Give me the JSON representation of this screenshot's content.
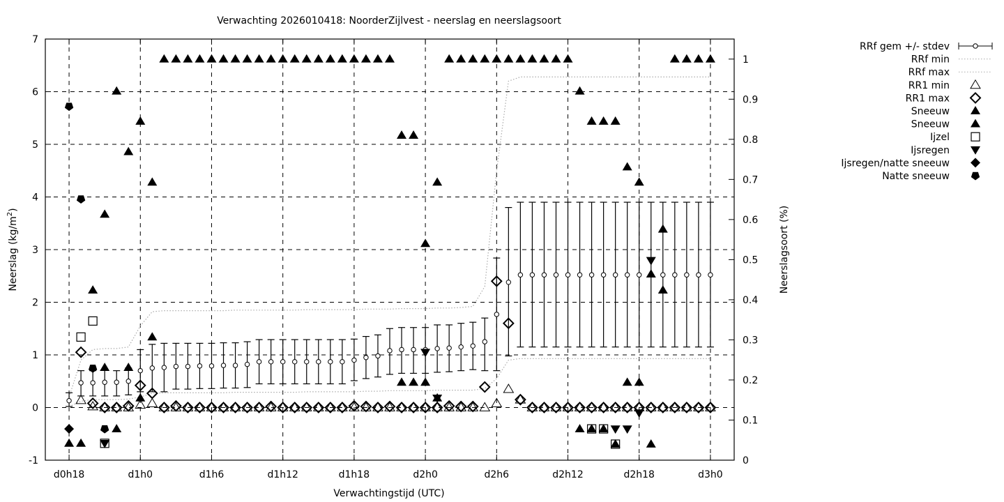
{
  "chart_data": {
    "type": "scatter",
    "title": "Verwachting 2026010418: NoorderZijlvest - neerslag en neerslagsoort",
    "xlabel": "Verwachtingstijd (UTC)",
    "ylabel": "Neerslag (kg/m²)",
    "ylabel_base": "Neerslag (kg/m",
    "ylabel_sup": "2",
    "ylabel_end": ")",
    "y2label": "Neerslagsoort (%)",
    "xlim": [
      "d0h16",
      "d3h2"
    ],
    "ylim": [
      -1,
      7
    ],
    "y2lim": [
      0,
      1.05
    ],
    "grid": true,
    "legend_placement": "outside-right",
    "xticks": [
      "d0h18",
      "d1h0",
      "d1h6",
      "d1h12",
      "d1h18",
      "d2h0",
      "d2h6",
      "d2h12",
      "d2h18",
      "d3h0"
    ],
    "yticks": [
      "-1",
      "0",
      "1",
      "2",
      "3",
      "4",
      "5",
      "6",
      "7"
    ],
    "y2ticks": [
      "0",
      "0.1",
      "0.2",
      "0.3",
      "0.4",
      "0.5",
      "0.6",
      "0.7",
      "0.8",
      "0.9",
      "1"
    ],
    "x": [
      "d0h18",
      "d0h19",
      "d0h20",
      "d0h21",
      "d0h22",
      "d0h23",
      "d1h0",
      "d1h1",
      "d1h2",
      "d1h3",
      "d1h4",
      "d1h5",
      "d1h6",
      "d1h7",
      "d1h8",
      "d1h9",
      "d1h10",
      "d1h11",
      "d1h12",
      "d1h13",
      "d1h14",
      "d1h15",
      "d1h16",
      "d1h17",
      "d1h18",
      "d1h19",
      "d1h20",
      "d1h21",
      "d1h22",
      "d1h23",
      "d2h0",
      "d2h1",
      "d2h2",
      "d2h3",
      "d2h4",
      "d2h5",
      "d2h6",
      "d2h7",
      "d2h8",
      "d2h9",
      "d2h10",
      "d2h11",
      "d2h12",
      "d2h13",
      "d2h14",
      "d2h15",
      "d2h16",
      "d2h17",
      "d2h18",
      "d2h19",
      "d2h20",
      "d2h21",
      "d2h22",
      "d2h23",
      "d3h0"
    ],
    "rrf_mean": [
      0.13,
      0.47,
      0.47,
      0.48,
      0.48,
      0.5,
      0.7,
      0.75,
      0.76,
      0.78,
      0.78,
      0.79,
      0.79,
      0.8,
      0.8,
      0.82,
      0.87,
      0.87,
      0.87,
      0.87,
      0.87,
      0.87,
      0.87,
      0.87,
      0.9,
      0.95,
      0.98,
      1.08,
      1.1,
      1.1,
      1.1,
      1.12,
      1.13,
      1.15,
      1.17,
      1.25,
      1.77,
      2.38,
      2.52,
      2.52,
      2.52,
      2.52,
      2.52,
      2.52,
      2.52,
      2.52,
      2.52,
      2.52,
      2.52,
      2.52,
      2.52,
      2.52,
      2.52,
      2.52,
      2.52
    ],
    "rrf_low": [
      0.02,
      0.22,
      0.22,
      0.22,
      0.22,
      0.24,
      0.3,
      0.3,
      0.3,
      0.35,
      0.35,
      0.36,
      0.36,
      0.37,
      0.37,
      0.38,
      0.45,
      0.45,
      0.45,
      0.45,
      0.45,
      0.45,
      0.45,
      0.45,
      0.51,
      0.55,
      0.58,
      0.63,
      0.65,
      0.65,
      0.65,
      0.67,
      0.68,
      0.7,
      0.72,
      0.7,
      0.7,
      0.98,
      1.15,
      1.15,
      1.15,
      1.15,
      1.15,
      1.15,
      1.15,
      1.15,
      1.15,
      1.15,
      1.15,
      1.15,
      1.15,
      1.15,
      1.15,
      1.15,
      1.15
    ],
    "rrf_high": [
      0.28,
      0.7,
      0.7,
      0.72,
      0.7,
      0.75,
      1.1,
      1.2,
      1.22,
      1.22,
      1.22,
      1.22,
      1.22,
      1.23,
      1.23,
      1.25,
      1.29,
      1.29,
      1.29,
      1.29,
      1.29,
      1.29,
      1.29,
      1.29,
      1.3,
      1.35,
      1.38,
      1.5,
      1.52,
      1.52,
      1.52,
      1.57,
      1.57,
      1.6,
      1.62,
      1.7,
      2.84,
      3.8,
      3.9,
      3.9,
      3.9,
      3.9,
      3.9,
      3.9,
      3.9,
      3.9,
      3.9,
      3.9,
      3.9,
      3.9,
      3.9,
      3.9,
      3.9,
      3.9,
      3.9
    ],
    "rrf_min": [
      0.02,
      0.12,
      0.15,
      0.15,
      0.15,
      0.16,
      0.2,
      0.27,
      0.28,
      0.28,
      0.28,
      0.28,
      0.28,
      0.28,
      0.29,
      0.29,
      0.29,
      0.29,
      0.29,
      0.29,
      0.3,
      0.3,
      0.3,
      0.3,
      0.3,
      0.31,
      0.31,
      0.32,
      0.32,
      0.32,
      0.32,
      0.33,
      0.33,
      0.33,
      0.33,
      0.36,
      0.55,
      0.9,
      0.93,
      0.93,
      0.93,
      0.93,
      0.93,
      0.93,
      0.93,
      0.93,
      0.93,
      0.93,
      0.93,
      0.93,
      0.93,
      0.93,
      0.93,
      0.93,
      0.93
    ],
    "rrf_max": [
      0.2,
      0.9,
      1.1,
      1.12,
      1.12,
      1.15,
      1.55,
      1.82,
      1.84,
      1.84,
      1.84,
      1.84,
      1.84,
      1.84,
      1.85,
      1.85,
      1.85,
      1.85,
      1.85,
      1.85,
      1.86,
      1.86,
      1.86,
      1.86,
      1.86,
      1.87,
      1.87,
      1.87,
      1.88,
      1.88,
      1.88,
      1.89,
      1.89,
      1.9,
      1.92,
      2.3,
      4.5,
      6.2,
      6.28,
      6.28,
      6.28,
      6.28,
      6.28,
      6.28,
      6.28,
      6.28,
      6.28,
      6.28,
      6.28,
      6.28,
      6.28,
      6.28,
      6.28,
      6.28,
      6.28
    ],
    "rr1_min": [
      null,
      0.14,
      0.02,
      0,
      0,
      0,
      0.05,
      0.08,
      0,
      0,
      0,
      0,
      0,
      0,
      0,
      0,
      0,
      0,
      0,
      0,
      0,
      0,
      0,
      0,
      0,
      0,
      0,
      0,
      0,
      0,
      0,
      0,
      0,
      0,
      0,
      0,
      0.08,
      0.35,
      0.15,
      0,
      0,
      0,
      0,
      0,
      0,
      0,
      0,
      0,
      0,
      0,
      0,
      0,
      0,
      0,
      0
    ],
    "rr1_max": [
      null,
      1.05,
      0.08,
      0,
      0,
      0.03,
      0.42,
      0.27,
      0,
      0.03,
      0,
      0,
      0,
      0,
      0,
      0,
      0,
      0.02,
      0,
      0,
      0,
      0,
      0,
      0,
      0.03,
      0.02,
      0,
      0.02,
      0,
      0,
      0,
      0,
      0.03,
      0.02,
      0.02,
      0.39,
      2.4,
      1.6,
      0.15,
      0,
      0,
      0,
      0,
      0,
      0,
      0,
      0,
      0,
      0,
      0,
      0,
      0,
      0,
      0,
      0
    ],
    "types": [
      {
        "name": "Sneeuw",
        "marker": "triangle-filled",
        "points": [
          [
            "d1h2",
            1
          ],
          [
            "d1h3",
            1
          ],
          [
            "d1h4",
            1
          ],
          [
            "d1h5",
            1
          ],
          [
            "d1h6",
            1
          ],
          [
            "d1h7",
            1
          ],
          [
            "d1h8",
            1
          ],
          [
            "d1h9",
            1
          ],
          [
            "d1h10",
            1
          ],
          [
            "d1h11",
            1
          ],
          [
            "d1h12",
            1
          ],
          [
            "d1h13",
            1
          ],
          [
            "d1h14",
            1
          ],
          [
            "d1h15",
            1
          ],
          [
            "d1h16",
            1
          ],
          [
            "d1h17",
            1
          ],
          [
            "d1h18",
            1
          ],
          [
            "d1h19",
            1
          ],
          [
            "d1h20",
            1
          ],
          [
            "d1h21",
            1
          ],
          [
            "d2h2",
            1
          ],
          [
            "d2h3",
            1
          ],
          [
            "d2h4",
            1
          ],
          [
            "d2h5",
            1
          ],
          [
            "d2h6",
            1
          ],
          [
            "d2h7",
            1
          ],
          [
            "d2h8",
            1
          ],
          [
            "d2h9",
            1
          ],
          [
            "d2h10",
            1
          ],
          [
            "d2h11",
            1
          ],
          [
            "d2h12",
            1
          ],
          [
            "d2h21",
            1
          ],
          [
            "d2h22",
            1
          ],
          [
            "d2h23",
            1
          ],
          [
            "d3h0",
            1
          ]
        ]
      },
      {
        "name": "Sneeuw",
        "marker": "triangle-filled",
        "points": [
          [
            "d0h18",
            0.042
          ],
          [
            "d0h19",
            0.042
          ],
          [
            "d0h20",
            0.424
          ],
          [
            "d0h21",
            0.613
          ],
          [
            "d0h21",
            0.231
          ],
          [
            "d0h22",
            0.92
          ],
          [
            "d0h22",
            0.078
          ],
          [
            "d0h23",
            0.769
          ],
          [
            "d0h23",
            0.231
          ],
          [
            "d1h0",
            0.845
          ],
          [
            "d1h0",
            0.155
          ],
          [
            "d1h1",
            0.693
          ],
          [
            "d1h1",
            0.307
          ],
          [
            "d1h22",
            0.81
          ],
          [
            "d1h23",
            0.81
          ],
          [
            "d1h22",
            0.194
          ],
          [
            "d1h23",
            0.194
          ],
          [
            "d2h0",
            0.194
          ],
          [
            "d2h0",
            0.54
          ],
          [
            "d2h1",
            0.693
          ],
          [
            "d2h1",
            0.155
          ],
          [
            "d2h13",
            0.92
          ],
          [
            "d2h14",
            0.845
          ],
          [
            "d2h15",
            0.845
          ],
          [
            "d2h16",
            0.845
          ],
          [
            "d2h17",
            0.731
          ],
          [
            "d2h18",
            0.693
          ],
          [
            "d2h17",
            0.194
          ],
          [
            "d2h18",
            0.194
          ],
          [
            "d2h19",
            0.464
          ],
          [
            "d2h20",
            0.576
          ],
          [
            "d2h20",
            0.424
          ],
          [
            "d2h13",
            0.078
          ],
          [
            "d2h14",
            0.078
          ],
          [
            "d2h15",
            0.078
          ],
          [
            "d2h16",
            0.04
          ],
          [
            "d2h19",
            0.04
          ]
        ]
      },
      {
        "name": "Ijzel",
        "marker": "square-open",
        "points": [
          [
            "d0h19",
            0.307
          ],
          [
            "d0h20",
            0.347
          ],
          [
            "d0h21",
            0.042
          ],
          [
            "d2h14",
            0.078
          ],
          [
            "d2h15",
            0.078
          ],
          [
            "d2h16",
            0.04
          ]
        ]
      },
      {
        "name": "Ijsregen",
        "marker": "triangle-down-filled",
        "points": [
          [
            "d0h21",
            0.042
          ],
          [
            "d2h0",
            0.269
          ],
          [
            "d2h1",
            0.155
          ],
          [
            "d2h16",
            0.078
          ],
          [
            "d2h17",
            0.078
          ],
          [
            "d2h18",
            0.118
          ],
          [
            "d2h19",
            0.498
          ]
        ]
      },
      {
        "name": "Ijsregen/natte sneeuw",
        "marker": "diamond-filled",
        "points": [
          [
            "d0h18",
            0.078
          ]
        ]
      },
      {
        "name": "Natte sneeuw",
        "marker": "pentagon-filled",
        "points": [
          [
            "d0h18",
            0.882
          ],
          [
            "d0h19",
            0.651
          ],
          [
            "d0h20",
            0.229
          ],
          [
            "d0h21",
            0.078
          ]
        ]
      }
    ],
    "legend": [
      {
        "label": "RRf gem +/- stdev",
        "marker": "errorbar-circle"
      },
      {
        "label": "RRf min",
        "marker": "dotted-line"
      },
      {
        "label": "RRf max",
        "marker": "dotted-line"
      },
      {
        "label": "RR1 min",
        "marker": "triangle-open"
      },
      {
        "label": "RR1 max",
        "marker": "diamond-open"
      },
      {
        "label": "Sneeuw",
        "marker": "triangle-filled"
      },
      {
        "label": "Sneeuw",
        "marker": "triangle-filled"
      },
      {
        "label": "Ijzel",
        "marker": "square-open"
      },
      {
        "label": "Ijsregen",
        "marker": "triangle-down-filled"
      },
      {
        "label": "Ijsregen/natte sneeuw",
        "marker": "diamond-filled"
      },
      {
        "label": "Natte sneeuw",
        "marker": "pentagon-filled"
      }
    ],
    "colors": {
      "marks": "#000000",
      "minmax_line": "#aaaaaa",
      "background": "#ffffff"
    }
  }
}
